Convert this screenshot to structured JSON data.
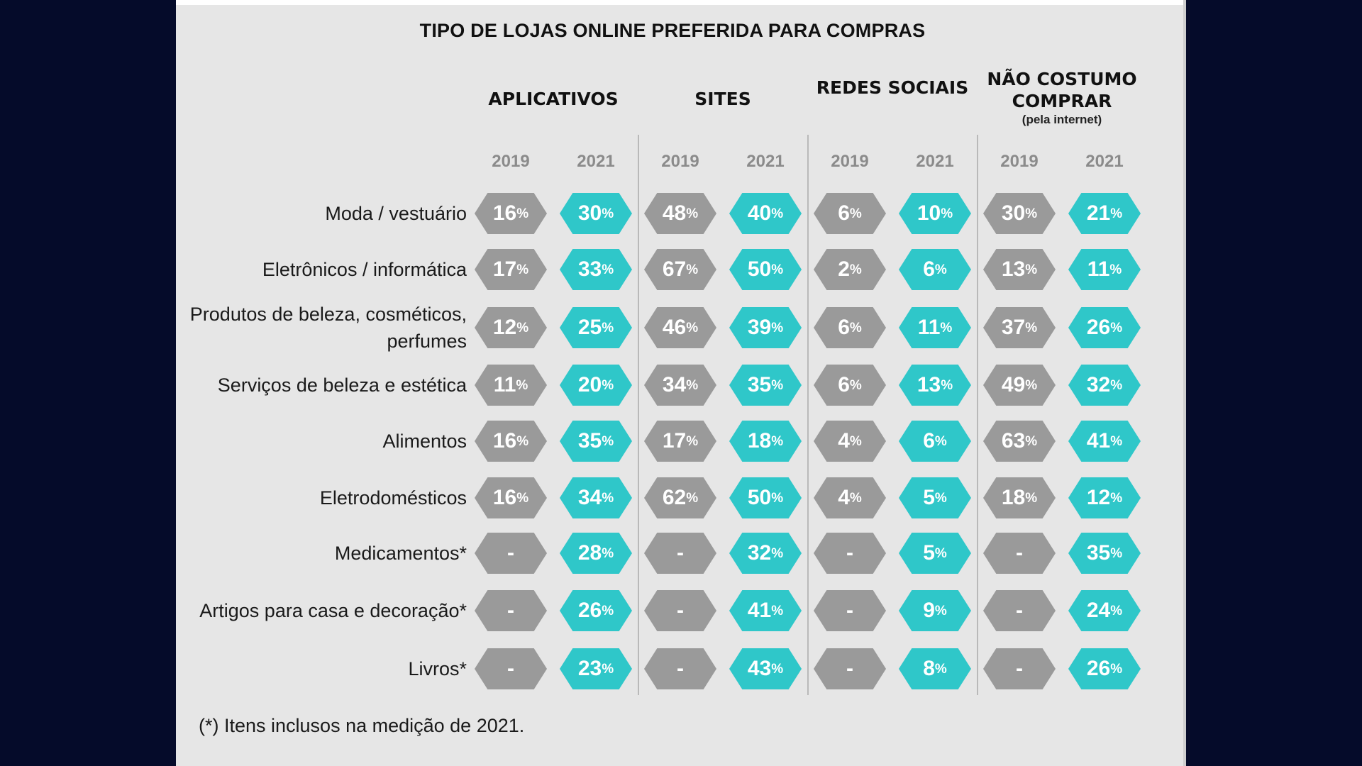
{
  "colors": {
    "background": "#050b2a",
    "panel": "#e6e6e6",
    "year_2019": "#9a9a9a",
    "year_2021": "#2fc7c9"
  },
  "chart_data": {
    "type": "table",
    "title": "TIPO DE LOJAS ONLINE PREFERIDA PARA COMPRAS",
    "groups": [
      {
        "name": "APLICATIVOS",
        "sub": ""
      },
      {
        "name": "SITES",
        "sub": ""
      },
      {
        "name": "REDES SOCIAIS",
        "sub": ""
      },
      {
        "name": "NÃO COSTUMO COMPRAR",
        "sub": "(pela internet)"
      }
    ],
    "years": [
      "2019",
      "2021"
    ],
    "categories": [
      "Moda / vestuário",
      "Eletrônicos / informática",
      "Produtos de beleza, cosméticos, perfumes",
      "Serviços de beleza e estética",
      "Alimentos",
      "Eletrodomésticos",
      "Medicamentos*",
      "Artigos para casa e decoração*",
      "Livros*"
    ],
    "values": [
      [
        16,
        30,
        48,
        40,
        6,
        10,
        30,
        21
      ],
      [
        17,
        33,
        67,
        50,
        2,
        6,
        13,
        11
      ],
      [
        12,
        25,
        46,
        39,
        6,
        11,
        37,
        26
      ],
      [
        11,
        20,
        34,
        35,
        6,
        13,
        49,
        32
      ],
      [
        16,
        35,
        17,
        18,
        4,
        6,
        63,
        41
      ],
      [
        16,
        34,
        62,
        50,
        4,
        5,
        18,
        12
      ],
      [
        null,
        28,
        null,
        32,
        null,
        5,
        null,
        35
      ],
      [
        null,
        26,
        null,
        41,
        null,
        9,
        null,
        24
      ],
      [
        null,
        23,
        null,
        43,
        null,
        8,
        null,
        26
      ]
    ],
    "unit": "%",
    "missing_symbol": "-"
  },
  "footnote": "(*) Itens inclusos na medição de 2021."
}
